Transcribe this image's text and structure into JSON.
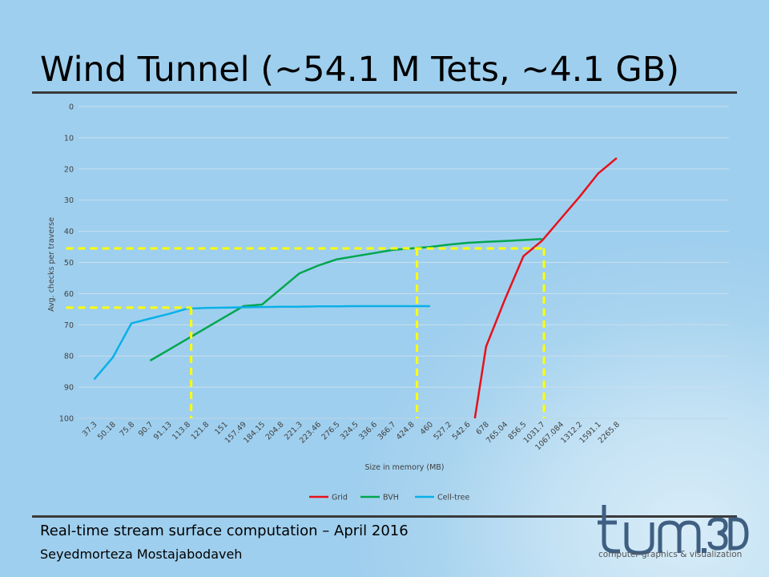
{
  "slide": {
    "title": "Wind Tunnel (~54.1 M Tets, ~4.1 GB)",
    "footer_title": "Real-time stream surface computation – April 2016",
    "footer_author": "Seyedmorteza Mostajabodaveh",
    "logo_tagline": "computer graphics & visualization",
    "logo_text": "tum.3D"
  },
  "chart_data": {
    "type": "line",
    "title": "",
    "xlabel": "Size in memory  (MB)",
    "ylabel": "Avg. checks per traverse",
    "ylim": [
      0,
      100
    ],
    "y_inverted": true,
    "y_ticks": [
      0,
      10,
      20,
      30,
      40,
      50,
      60,
      70,
      80,
      90,
      100
    ],
    "categories": [
      "37.3",
      "50.18",
      "75.8",
      "90.7",
      "91.13",
      "113.8",
      "121.8",
      "151",
      "157.49",
      "184.15",
      "204.8",
      "221.3",
      "223.46",
      "276.5",
      "324.5",
      "336.6",
      "366.7",
      "424.8",
      "460",
      "527.2",
      "542.6",
      "678",
      "765.04",
      "856.5",
      "1031.7",
      "1067.084",
      "1312.2",
      "1591.1",
      "2265.8"
    ],
    "grid": true,
    "legend_position": "bottom",
    "series": [
      {
        "name": "Grid",
        "color": "#e8101a",
        "points": [
          [
            20.4,
            100
          ],
          [
            21,
            77
          ],
          [
            22,
            62
          ],
          [
            23,
            48
          ],
          [
            24,
            43
          ],
          [
            25,
            36
          ],
          [
            26,
            29
          ],
          [
            27,
            21.5
          ],
          [
            28,
            16.5
          ]
        ]
      },
      {
        "name": "BVH",
        "color": "#00a650",
        "points": [
          [
            3,
            81.5
          ],
          [
            4,
            78
          ],
          [
            5,
            74.5
          ],
          [
            6,
            71
          ],
          [
            7,
            67.5
          ],
          [
            8,
            64
          ],
          [
            9,
            63.5
          ],
          [
            10,
            58.5
          ],
          [
            11,
            53.5
          ],
          [
            12,
            51
          ],
          [
            13,
            49
          ],
          [
            14,
            48
          ],
          [
            15,
            47
          ],
          [
            16,
            46
          ],
          [
            17,
            45.5
          ],
          [
            18,
            45
          ],
          [
            19,
            44.3
          ],
          [
            20,
            43.7
          ],
          [
            21,
            43.4
          ],
          [
            22,
            43.1
          ],
          [
            23,
            42.8
          ],
          [
            24,
            42.5
          ]
        ]
      },
      {
        "name": "Cell-tree",
        "color": "#0ab0e8",
        "points": [
          [
            0,
            87.5
          ],
          [
            1,
            80.5
          ],
          [
            2,
            69.5
          ],
          [
            3,
            68
          ],
          [
            4,
            66.5
          ],
          [
            5,
            64.8
          ],
          [
            6,
            64.6
          ],
          [
            7,
            64.5
          ],
          [
            8,
            64.4
          ],
          [
            9,
            64.3
          ],
          [
            10,
            64.2
          ],
          [
            11,
            64.2
          ],
          [
            12,
            64.1
          ],
          [
            13,
            64.1
          ],
          [
            14,
            64.0
          ],
          [
            15,
            64.0
          ],
          [
            16,
            64.0
          ],
          [
            17,
            64.0
          ],
          [
            18,
            64.0
          ]
        ]
      }
    ],
    "reference_lines": {
      "color": "#ffff00",
      "levels": [
        {
          "y": 64.5,
          "x_from": -1.5,
          "x_to": 5.2
        },
        {
          "y": 45.5,
          "x_from": -1.5,
          "x_to": 24.1
        }
      ],
      "drops": [
        {
          "x": 5.2,
          "y_from": 64.5
        },
        {
          "x": 17.3,
          "y_from": 45.5
        },
        {
          "x": 24.1,
          "y_from": 45.5
        }
      ]
    }
  }
}
